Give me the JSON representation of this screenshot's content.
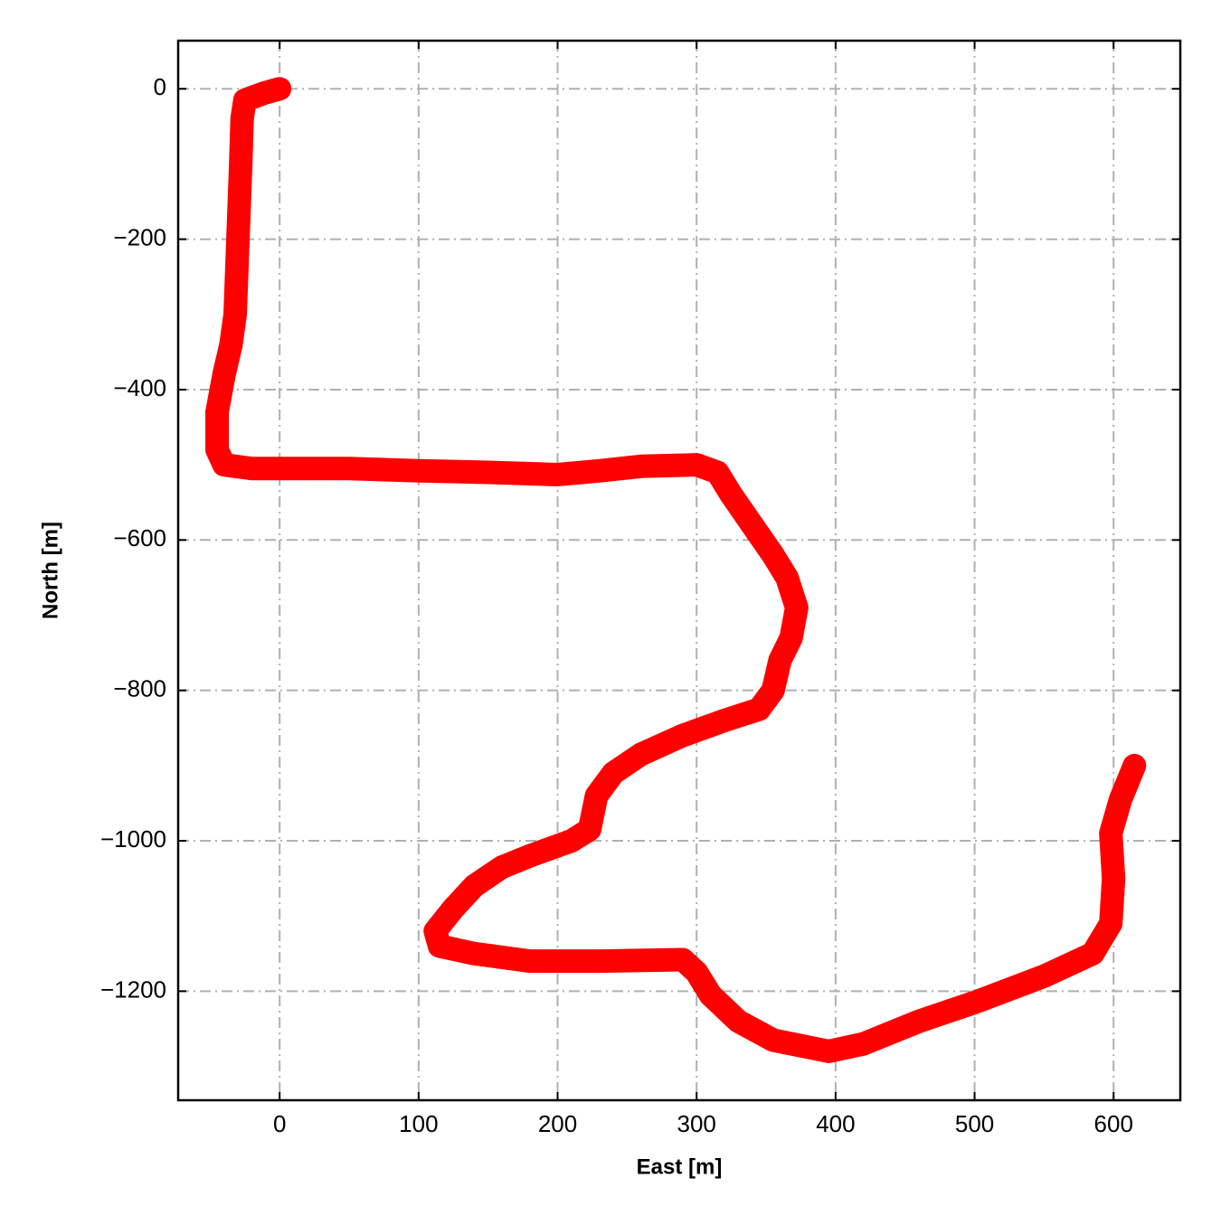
{
  "chart_data": {
    "type": "line",
    "xlabel": "East [m]",
    "ylabel": "North [m]",
    "xlim": [
      -73,
      648
    ],
    "ylim": [
      -1345,
      64
    ],
    "xticks": [
      0,
      100,
      200,
      300,
      400,
      500,
      600
    ],
    "yticks": [
      {
        "value": 0,
        "label": "0"
      },
      {
        "value": -200,
        "label": "−200"
      },
      {
        "value": -400,
        "label": "−400"
      },
      {
        "value": -600,
        "label": "−600"
      },
      {
        "value": -800,
        "label": "−800"
      },
      {
        "value": -1000,
        "label": "−1000"
      },
      {
        "value": -1200,
        "label": "−1200"
      }
    ],
    "grid": true,
    "x": [
      0,
      -10,
      -25,
      -27,
      -28,
      -30,
      -32,
      -35,
      -40,
      -45,
      -45,
      -40,
      -20,
      50,
      100,
      150,
      200,
      230,
      260,
      300,
      315,
      325,
      340,
      355,
      365,
      372,
      368,
      360,
      355,
      345,
      320,
      290,
      260,
      240,
      228,
      223,
      210,
      180,
      160,
      140,
      125,
      112,
      115,
      140,
      180,
      230,
      290,
      300,
      310,
      330,
      355,
      395,
      420,
      460,
      500,
      550,
      585,
      598,
      600,
      598,
      605,
      615
    ],
    "series": [
      {
        "color": "#ff0000",
        "values": [
          0,
          -5,
          -15,
          -40,
          -100,
          -200,
          -300,
          -340,
          -380,
          -430,
          -480,
          -500,
          -505,
          -505,
          -508,
          -510,
          -513,
          -508,
          -502,
          -500,
          -510,
          -540,
          -580,
          -620,
          -650,
          -690,
          -730,
          -760,
          -800,
          -825,
          -840,
          -860,
          -885,
          -910,
          -940,
          -985,
          -1000,
          -1020,
          -1035,
          -1060,
          -1090,
          -1120,
          -1140,
          -1150,
          -1160,
          -1160,
          -1158,
          -1175,
          -1205,
          -1240,
          -1265,
          -1280,
          -1270,
          -1240,
          -1215,
          -1180,
          -1150,
          -1110,
          -1050,
          -990,
          -945,
          -900
        ]
      }
    ]
  }
}
